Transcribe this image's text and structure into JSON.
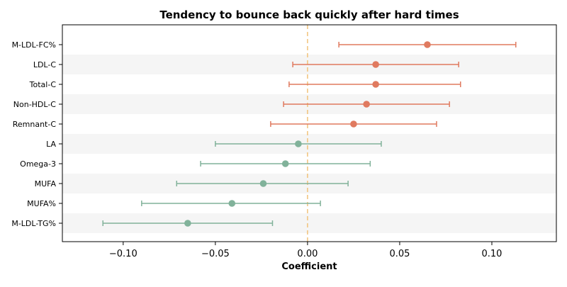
{
  "chart_data": {
    "type": "scatter",
    "subtype": "forest-plot",
    "title": "Tendency to bounce back quickly after hard times",
    "xlabel": "Coefficient",
    "ylabel": "",
    "xlim": [
      -0.133,
      0.135
    ],
    "xticks": [
      -0.1,
      -0.05,
      0.0,
      0.05,
      0.1
    ],
    "xtick_labels": [
      "−0.10",
      "−0.05",
      "0.00",
      "0.05",
      "0.10"
    ],
    "reference_line": {
      "x": 0.0,
      "style": "dashed",
      "color": "#f2c27a"
    },
    "grid": false,
    "row_banding": true,
    "colors": {
      "positive": "#e07a5f",
      "negative": "#81b29a",
      "band": "#f5f5f5"
    },
    "rows": [
      {
        "label": "M-LDL-FC%",
        "estimate": 0.065,
        "ci_low": 0.017,
        "ci_high": 0.113
      },
      {
        "label": "LDL-C",
        "estimate": 0.037,
        "ci_low": -0.008,
        "ci_high": 0.082
      },
      {
        "label": "Total-C",
        "estimate": 0.037,
        "ci_low": -0.01,
        "ci_high": 0.083
      },
      {
        "label": "Non-HDL-C",
        "estimate": 0.032,
        "ci_low": -0.013,
        "ci_high": 0.077
      },
      {
        "label": "Remnant-C",
        "estimate": 0.025,
        "ci_low": -0.02,
        "ci_high": 0.07
      },
      {
        "label": "LA",
        "estimate": -0.005,
        "ci_low": -0.05,
        "ci_high": 0.04
      },
      {
        "label": "Omega-3",
        "estimate": -0.012,
        "ci_low": -0.058,
        "ci_high": 0.034
      },
      {
        "label": "MUFA",
        "estimate": -0.024,
        "ci_low": -0.071,
        "ci_high": 0.022
      },
      {
        "label": "MUFA%",
        "estimate": -0.041,
        "ci_low": -0.09,
        "ci_high": 0.007
      },
      {
        "label": "M-LDL-TG%",
        "estimate": -0.065,
        "ci_low": -0.111,
        "ci_high": -0.019
      }
    ]
  }
}
